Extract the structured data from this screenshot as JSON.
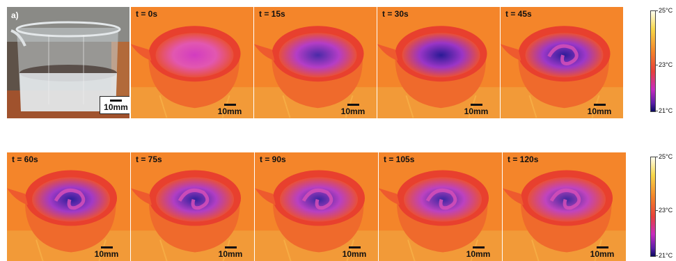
{
  "photo": {
    "label": "a)",
    "scale": "10mm"
  },
  "frames_top": [
    {
      "time": "t = 0s",
      "scale": "10mm",
      "core": "#d23cc0",
      "inner": "#e257b0",
      "swirl": false
    },
    {
      "time": "t = 15s",
      "scale": "10mm",
      "core": "#4a2aa8",
      "inner": "#b43dc6",
      "swirl": false
    },
    {
      "time": "t = 30s",
      "scale": "10mm",
      "core": "#2a1a96",
      "inner": "#9a35c6",
      "swirl": false
    },
    {
      "time": "t = 45s",
      "scale": "10mm",
      "core": "#2c1c98",
      "inner": "#9c38c8",
      "swirl": true
    }
  ],
  "frames_bottom": [
    {
      "time": "t = 60s",
      "scale": "10mm",
      "core": "#2e1e9a",
      "inner": "#a23ac6",
      "swirl": true
    },
    {
      "time": "t = 75s",
      "scale": "10mm",
      "core": "#30209c",
      "inner": "#b03ec4",
      "swirl": true
    },
    {
      "time": "t = 90s",
      "scale": "10mm",
      "core": "#3a24a0",
      "inner": "#b840c2",
      "swirl": true
    },
    {
      "time": "t = 105s",
      "scale": "10mm",
      "core": "#3c26a2",
      "inner": "#bc42c0",
      "swirl": true
    },
    {
      "time": "t = 120s",
      "scale": "10mm",
      "core": "#40289e",
      "inner": "#c044be",
      "swirl": true
    }
  ],
  "colorbar": {
    "max": "25°C",
    "mid": "23°C",
    "min": "21°C"
  }
}
